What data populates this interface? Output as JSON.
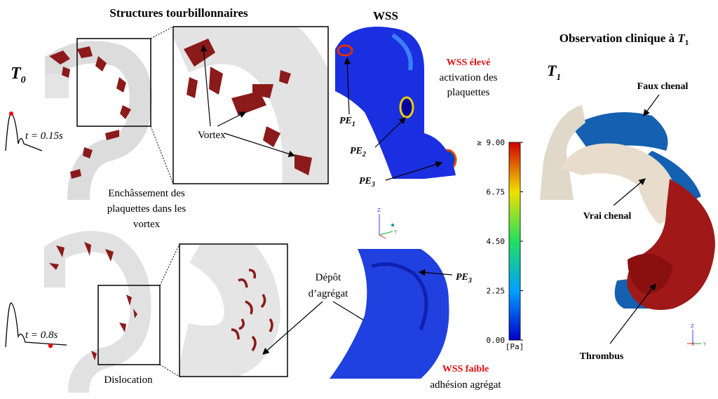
{
  "panel_left": {
    "title": "Structures tourbillonnaires",
    "top": {
      "time_label": {
        "base": "T",
        "sub": "0"
      },
      "pulse_label": "t = 0.15s",
      "vortex_label": "Vortex",
      "caption": [
        "Enchâssement des",
        "plaquettes dans les",
        "vortex"
      ]
    },
    "bottom": {
      "pulse_label": "t = 0.8s",
      "dislocation_label": "Dislocation",
      "deposit_label": [
        "Dépôt",
        "d’agrégat"
      ]
    }
  },
  "panel_wss": {
    "title": "WSS",
    "high": {
      "title": "WSS élevé",
      "lines": [
        "activation des",
        "plaquettes"
      ]
    },
    "low": {
      "title": "WSS faible",
      "lines": [
        "adhésion agrégat"
      ]
    },
    "markers": [
      {
        "base": "PE",
        "sub": "1"
      },
      {
        "base": "PE",
        "sub": "2"
      },
      {
        "base": "PE",
        "sub": "3"
      },
      {
        "base": "PE",
        "sub": "3"
      }
    ],
    "triad": [
      "Z",
      "Y"
    ],
    "colorbar": {
      "unit": "[Pa]",
      "ticks": [
        {
          "value": 0,
          "label": "0.00"
        },
        {
          "value": 2.25,
          "label": "2.25"
        },
        {
          "value": 4.5,
          "label": "4.50"
        },
        {
          "value": 6.75,
          "label": "6.75"
        },
        {
          "value": 9,
          "label": "≥ 9.00"
        }
      ]
    }
  },
  "panel_clinical": {
    "title": {
      "text": "Observation clinique à ",
      "base": "T",
      "sub": "1"
    },
    "time_label": {
      "base": "T",
      "sub": "1"
    },
    "labels": [
      "Faux chenal",
      "Vrai chenal",
      "Thrombus"
    ],
    "triad": [
      "Z",
      "X",
      "Y"
    ]
  }
}
